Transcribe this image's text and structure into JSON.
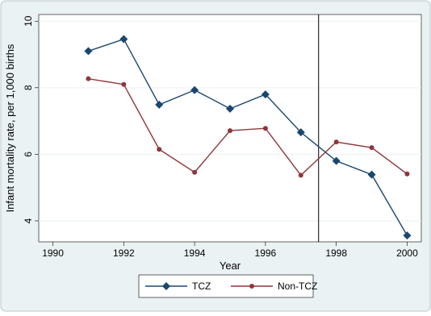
{
  "chart_data": {
    "type": "line",
    "x_label": "Year",
    "y_label": "Infant mortality rate, per 1,000 births",
    "x": [
      1991,
      1992,
      1993,
      1994,
      1995,
      1996,
      1997,
      1998,
      1999,
      2000
    ],
    "series": [
      {
        "name": "TCZ",
        "color": "#1a476f",
        "marker": "diamond",
        "values": [
          9.1,
          9.46,
          7.49,
          7.93,
          7.37,
          7.8,
          6.66,
          5.8,
          5.39,
          3.56
        ]
      },
      {
        "name": "Non-TCZ",
        "color": "#90353b",
        "marker": "circle",
        "values": [
          8.27,
          8.1,
          6.15,
          5.46,
          6.71,
          6.78,
          5.37,
          6.37,
          6.2,
          5.41
        ]
      }
    ],
    "vline": 1997.5,
    "xlim": [
      1989.6,
      2000.4
    ],
    "ylim": [
      3.37,
      10.2
    ],
    "xticks": [
      1990,
      1992,
      1994,
      1996,
      1998,
      2000
    ],
    "yticks": [
      4,
      6,
      8,
      10
    ],
    "grid": true,
    "legend_position": "bottom"
  }
}
